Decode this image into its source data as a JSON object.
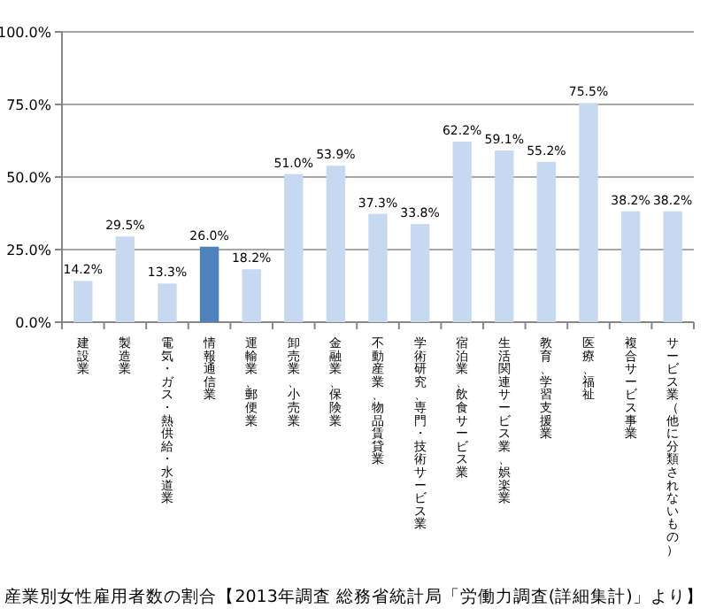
{
  "chart_data": {
    "type": "bar",
    "title": "産業別女性雇用者数の割合【2013年調査 総務省統計局「労働力調査(詳細集計)」より】",
    "categories": [
      "建設業",
      "製造業",
      "電気・ガス・熱供給・水道業",
      "情報通信業",
      "運輸業、郵便業",
      "卸売業、小売業",
      "金融業、保険業",
      "不動産業、物品賃貸業",
      "学術研究、専門・技術サービス業",
      "宿泊業、飲食サービス業",
      "生活関連サービス業、娯楽業",
      "教育、学習支援業",
      "医療、福祉",
      "複合サービス事業",
      "サービス業（他に分類されないもの）"
    ],
    "values": [
      14.2,
      29.5,
      13.3,
      26.0,
      18.2,
      51.0,
      53.9,
      37.3,
      33.8,
      62.2,
      59.1,
      55.2,
      75.5,
      38.2,
      38.2
    ],
    "value_labels": [
      "14.2%",
      "29.5%",
      "13.3%",
      "26.0%",
      "18.2%",
      "51.0%",
      "53.9%",
      "37.3%",
      "33.8%",
      "62.2%",
      "59.1%",
      "55.2%",
      "75.5%",
      "38.2%",
      "38.2%"
    ],
    "colors": [
      "#c6d9f0",
      "#c6d9f0",
      "#c6d9f0",
      "#4f81bd",
      "#c6d9f0",
      "#c6d9f0",
      "#c6d9f0",
      "#c6d9f0",
      "#c6d9f0",
      "#c6d9f0",
      "#c6d9f0",
      "#c6d9f0",
      "#c6d9f0",
      "#c6d9f0",
      "#c6d9f0"
    ],
    "ylim": [
      0,
      100
    ],
    "yticks": [
      {
        "value": 0,
        "label": "0.0%"
      },
      {
        "value": 25,
        "label": "25.0%"
      },
      {
        "value": 50,
        "label": "50.0%"
      },
      {
        "value": 75,
        "label": "75.0%"
      },
      {
        "value": 100,
        "label": "100.0%"
      }
    ],
    "grid": "y"
  }
}
